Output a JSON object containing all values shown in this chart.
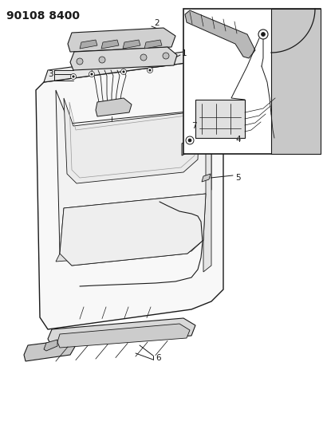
{
  "title": "90108 8400",
  "background_color": "#ffffff",
  "line_color": "#1a1a1a",
  "figsize": [
    4.06,
    5.33
  ],
  "dpi": 100,
  "label_fontsize": 7.5,
  "title_fontsize": 10
}
